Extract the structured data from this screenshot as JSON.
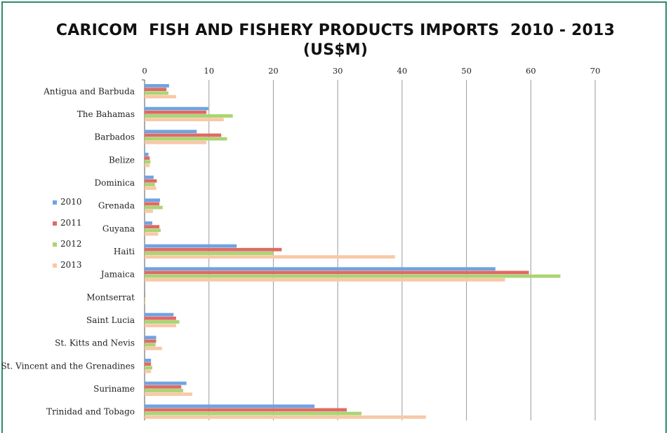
{
  "chart_data": {
    "type": "bar",
    "orientation": "horizontal",
    "title": "CARICOM  FISH AND FISHERY PRODUCTS IMPORTS  2010 - 2013",
    "subtitle": "(US$M)",
    "xlabel": "",
    "ylabel": "",
    "xlim": [
      0,
      70
    ],
    "x_ticks": [
      0,
      10,
      20,
      30,
      40,
      50,
      60,
      70
    ],
    "grid": true,
    "legend_position": "left",
    "categories": [
      "Antigua and Barbuda",
      "The Bahamas",
      "Barbados",
      "Belize",
      "Dominica",
      "Grenada",
      "Guyana",
      "Haiti",
      "Jamaica",
      "Montserrat",
      "Saint Lucia",
      "St. Kitts and Nevis",
      "St. Vincent and the Grenadines",
      "Suriname",
      "Trinidad and Tobago"
    ],
    "series": [
      {
        "name": "2010",
        "color": "#6fa3e0",
        "values": [
          3.8,
          9.9,
          8.1,
          0.6,
          1.4,
          2.4,
          1.2,
          14.3,
          54.5,
          0.1,
          4.5,
          1.8,
          1.0,
          6.5,
          26.4
        ]
      },
      {
        "name": "2011",
        "color": "#e06a64",
        "values": [
          3.4,
          9.6,
          11.9,
          0.8,
          1.9,
          2.3,
          2.3,
          21.3,
          59.7,
          0.1,
          4.9,
          1.8,
          1.0,
          5.7,
          31.4
        ]
      },
      {
        "name": "2012",
        "color": "#a9d572",
        "values": [
          3.7,
          13.7,
          12.8,
          0.9,
          1.6,
          2.8,
          2.5,
          20.0,
          64.6,
          0.1,
          5.4,
          1.7,
          1.2,
          6.0,
          33.7
        ]
      },
      {
        "name": "2013",
        "color": "#f8c8a6",
        "values": [
          4.9,
          12.3,
          9.6,
          0.8,
          1.8,
          1.3,
          2.1,
          38.9,
          56.0,
          0.1,
          4.9,
          2.7,
          1.0,
          7.4,
          43.7
        ]
      }
    ]
  }
}
